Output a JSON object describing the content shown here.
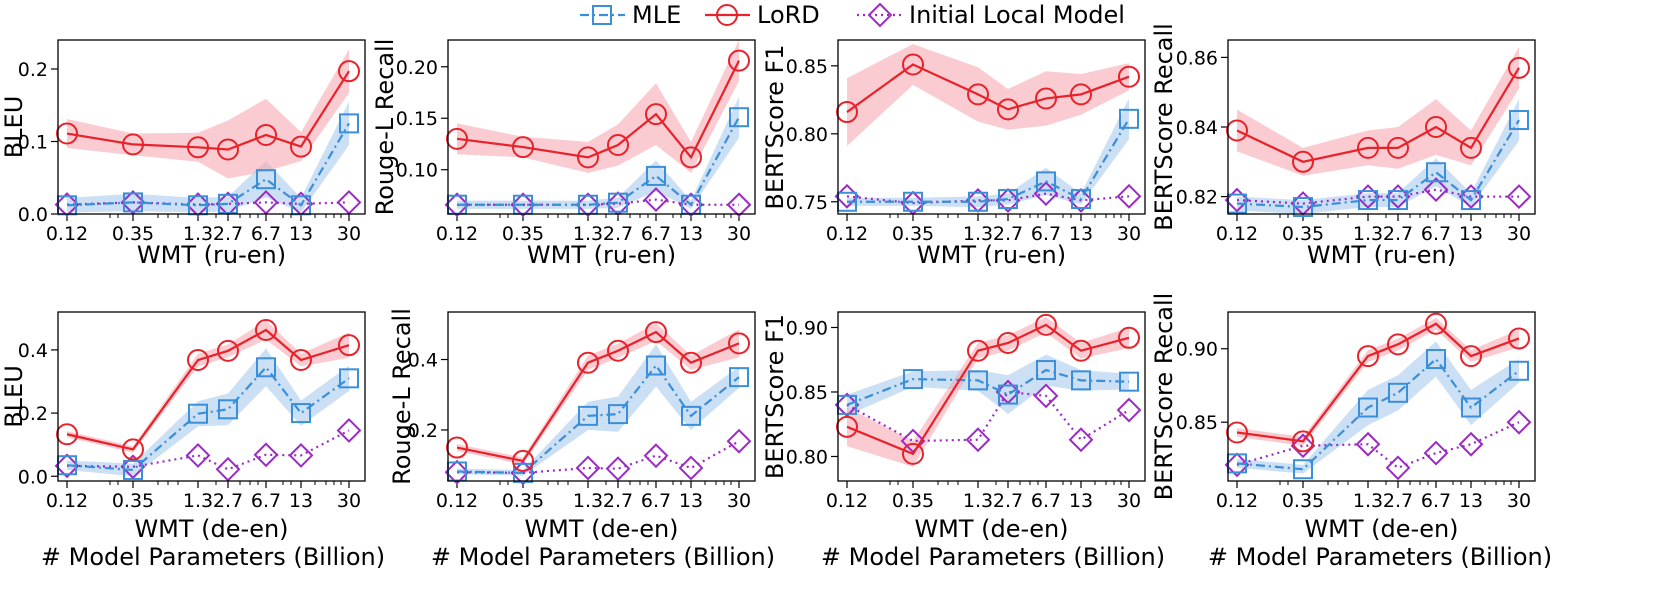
{
  "legend": {
    "entries": [
      {
        "name": "MLE",
        "color": "#3b8fd9",
        "marker": "square",
        "dash": "dashdot"
      },
      {
        "name": "LoRD",
        "color": "#e8222b",
        "marker": "circle",
        "dash": "solid"
      },
      {
        "name": "Initial Local Model",
        "color": "#9b2bc4",
        "marker": "diamond",
        "dash": "dotted"
      }
    ]
  },
  "colors": {
    "mle": "#3b8fd9",
    "lord": "#e8222b",
    "initial": "#9b2bc4",
    "mle_band": "#a9c9ee",
    "lord_band": "#f6a9b0"
  },
  "chart_data": [
    {
      "type": "line",
      "row": 0,
      "col": 0,
      "xlabel": "WMT (ru-en)",
      "ylabel": "BLEU",
      "x": [
        0.12,
        0.35,
        1.3,
        2.7,
        6.7,
        13,
        30
      ],
      "xtick_labels": [
        "0.12",
        "0.35",
        "1.3",
        "2.7",
        "6.7",
        "13",
        "30"
      ],
      "ylim": [
        0.0,
        0.24
      ],
      "yticks": [
        0.0,
        0.1,
        0.2
      ],
      "ytick_labels": [
        "0.0",
        "0.1",
        "0.2"
      ],
      "series": [
        {
          "name": "MLE",
          "values": [
            0.012,
            0.016,
            0.012,
            0.014,
            0.048,
            0.012,
            0.125
          ],
          "band": [
            0.01,
            0.012,
            0.01,
            0.01,
            0.025,
            0.01,
            0.03
          ]
        },
        {
          "name": "LoRD",
          "values": [
            0.111,
            0.096,
            0.092,
            0.089,
            0.109,
            0.093,
            0.197
          ],
          "band": [
            0.02,
            0.015,
            0.02,
            0.04,
            0.05,
            0.02,
            0.03
          ]
        },
        {
          "name": "Initial Local Model",
          "values": [
            0.013,
            0.016,
            0.013,
            0.014,
            0.016,
            0.014,
            0.016
          ]
        }
      ]
    },
    {
      "type": "line",
      "row": 0,
      "col": 1,
      "xlabel": "WMT (ru-en)",
      "ylabel": "Rouge-L Recall",
      "x": [
        0.12,
        0.35,
        1.3,
        2.7,
        6.7,
        13,
        30
      ],
      "xtick_labels": [
        "0.12",
        "0.35",
        "1.3",
        "2.7",
        "6.7",
        "13",
        "30"
      ],
      "ylim": [
        0.057,
        0.226
      ],
      "yticks": [
        0.1,
        0.15,
        0.2
      ],
      "ytick_labels": [
        "0.10",
        "0.15",
        "0.20"
      ],
      "series": [
        {
          "name": "MLE",
          "values": [
            0.066,
            0.066,
            0.066,
            0.068,
            0.094,
            0.066,
            0.151
          ],
          "band": [
            0.004,
            0.004,
            0.004,
            0.005,
            0.015,
            0.004,
            0.02
          ]
        },
        {
          "name": "LoRD",
          "values": [
            0.13,
            0.122,
            0.112,
            0.124,
            0.154,
            0.112,
            0.206
          ],
          "band": [
            0.015,
            0.01,
            0.015,
            0.02,
            0.03,
            0.015,
            0.02
          ]
        },
        {
          "name": "Initial Local Model",
          "values": [
            0.066,
            0.066,
            0.066,
            0.067,
            0.071,
            0.066,
            0.066
          ]
        }
      ]
    },
    {
      "type": "line",
      "row": 0,
      "col": 2,
      "xlabel": "WMT (ru-en)",
      "ylabel": "BERTScore F1",
      "x": [
        0.12,
        0.35,
        1.3,
        2.7,
        6.7,
        13,
        30
      ],
      "xtick_labels": [
        "0.12",
        "0.35",
        "1.3",
        "2.7",
        "6.7",
        "13",
        "30"
      ],
      "ylim": [
        0.741,
        0.869
      ],
      "yticks": [
        0.75,
        0.8,
        0.85
      ],
      "ytick_labels": [
        "0.75",
        "0.80",
        "0.85"
      ],
      "series": [
        {
          "name": "MLE",
          "values": [
            0.75,
            0.75,
            0.75,
            0.752,
            0.765,
            0.752,
            0.811
          ],
          "band": [
            0.003,
            0.003,
            0.004,
            0.004,
            0.01,
            0.004,
            0.015
          ]
        },
        {
          "name": "LoRD",
          "values": [
            0.816,
            0.851,
            0.829,
            0.818,
            0.826,
            0.829,
            0.842
          ],
          "band": [
            0.025,
            0.015,
            0.02,
            0.015,
            0.02,
            0.015,
            0.01
          ]
        },
        {
          "name": "Initial Local Model",
          "values": [
            0.754,
            0.749,
            0.751,
            0.751,
            0.756,
            0.751,
            0.754
          ]
        }
      ]
    },
    {
      "type": "line",
      "row": 0,
      "col": 3,
      "xlabel": "WMT (ru-en)",
      "ylabel": "BERTScore Recall",
      "x": [
        0.12,
        0.35,
        1.3,
        2.7,
        6.7,
        13,
        30
      ],
      "xtick_labels": [
        "0.12",
        "0.35",
        "1.3",
        "2.7",
        "6.7",
        "13",
        "30"
      ],
      "ylim": [
        0.815,
        0.865
      ],
      "yticks": [
        0.82,
        0.84,
        0.86
      ],
      "ytick_labels": [
        "0.82",
        "0.84",
        "0.86"
      ],
      "series": [
        {
          "name": "MLE",
          "values": [
            0.818,
            0.817,
            0.819,
            0.819,
            0.827,
            0.819,
            0.842
          ],
          "band": [
            0.002,
            0.002,
            0.002,
            0.002,
            0.004,
            0.002,
            0.006
          ]
        },
        {
          "name": "LoRD",
          "values": [
            0.839,
            0.83,
            0.834,
            0.834,
            0.84,
            0.834,
            0.857
          ],
          "band": [
            0.006,
            0.004,
            0.005,
            0.006,
            0.008,
            0.005,
            0.006
          ]
        },
        {
          "name": "Initial Local Model",
          "values": [
            0.819,
            0.818,
            0.82,
            0.82,
            0.822,
            0.82,
            0.82
          ]
        }
      ]
    },
    {
      "type": "line",
      "row": 1,
      "col": 0,
      "xlabel": "WMT (de-en)",
      "ylabel": "BLEU",
      "x": [
        0.12,
        0.35,
        1.3,
        2.7,
        6.7,
        13,
        30
      ],
      "xtick_labels": [
        "0.12",
        "0.35",
        "1.3",
        "2.7",
        "6.7",
        "13",
        "30"
      ],
      "ylim": [
        -0.015,
        0.52
      ],
      "yticks": [
        0.0,
        0.2,
        0.4
      ],
      "ytick_labels": [
        "0.0",
        "0.2",
        "0.4"
      ],
      "series": [
        {
          "name": "MLE",
          "values": [
            0.035,
            0.02,
            0.198,
            0.212,
            0.345,
            0.2,
            0.31
          ],
          "band": [
            0.015,
            0.02,
            0.04,
            0.05,
            0.06,
            0.04,
            0.04
          ]
        },
        {
          "name": "LoRD",
          "values": [
            0.133,
            0.085,
            0.368,
            0.397,
            0.463,
            0.368,
            0.415
          ],
          "band": [
            0.01,
            0.01,
            0.02,
            0.02,
            0.03,
            0.02,
            0.04
          ]
        },
        {
          "name": "Initial Local Model",
          "values": [
            0.033,
            0.03,
            0.066,
            0.022,
            0.068,
            0.066,
            0.145
          ]
        }
      ]
    },
    {
      "type": "line",
      "row": 1,
      "col": 1,
      "xlabel": "WMT (de-en)",
      "ylabel": "Rouge-L Recall",
      "x": [
        0.12,
        0.35,
        1.3,
        2.7,
        6.7,
        13,
        30
      ],
      "xtick_labels": [
        "0.12",
        "0.35",
        "1.3",
        "2.7",
        "6.7",
        "13",
        "30"
      ],
      "ylim": [
        0.055,
        0.535
      ],
      "yticks": [
        0.2,
        0.4
      ],
      "ytick_labels": [
        "0.2",
        "0.4"
      ],
      "series": [
        {
          "name": "MLE",
          "values": [
            0.082,
            0.078,
            0.24,
            0.245,
            0.383,
            0.24,
            0.35
          ],
          "band": [
            0.008,
            0.008,
            0.04,
            0.05,
            0.06,
            0.04,
            0.03
          ]
        },
        {
          "name": "LoRD",
          "values": [
            0.15,
            0.112,
            0.391,
            0.425,
            0.478,
            0.391,
            0.446
          ],
          "band": [
            0.01,
            0.01,
            0.02,
            0.02,
            0.025,
            0.02,
            0.04
          ]
        },
        {
          "name": "Initial Local Model",
          "values": [
            0.08,
            0.078,
            0.092,
            0.09,
            0.127,
            0.092,
            0.168
          ]
        }
      ]
    },
    {
      "type": "line",
      "row": 1,
      "col": 2,
      "xlabel": "WMT (de-en)",
      "ylabel": "BERTScore F1",
      "x": [
        0.12,
        0.35,
        1.3,
        2.7,
        6.7,
        13,
        30
      ],
      "xtick_labels": [
        "0.12",
        "0.35",
        "1.3",
        "2.7",
        "6.7",
        "13",
        "30"
      ],
      "ylim": [
        0.781,
        0.912
      ],
      "yticks": [
        0.8,
        0.85,
        0.9
      ],
      "ytick_labels": [
        "0.80",
        "0.85",
        "0.90"
      ],
      "series": [
        {
          "name": "MLE",
          "values": [
            0.84,
            0.86,
            0.859,
            0.848,
            0.867,
            0.859,
            0.858
          ],
          "band": [
            0.008,
            0.006,
            0.008,
            0.015,
            0.012,
            0.008,
            0.006
          ]
        },
        {
          "name": "LoRD",
          "values": [
            0.823,
            0.802,
            0.882,
            0.888,
            0.902,
            0.882,
            0.892
          ],
          "band": [
            0.015,
            0.01,
            0.006,
            0.006,
            0.006,
            0.006,
            0.008
          ]
        },
        {
          "name": "Initial Local Model",
          "values": [
            0.84,
            0.812,
            0.813,
            0.85,
            0.847,
            0.813,
            0.836
          ]
        }
      ]
    },
    {
      "type": "line",
      "row": 1,
      "col": 3,
      "xlabel": "WMT (de-en)",
      "ylabel": "BERTScore Recall",
      "x": [
        0.12,
        0.35,
        1.3,
        2.7,
        6.7,
        13,
        30
      ],
      "xtick_labels": [
        "0.12",
        "0.35",
        "1.3",
        "2.7",
        "6.7",
        "13",
        "30"
      ],
      "ylim": [
        0.81,
        0.925
      ],
      "yticks": [
        0.85,
        0.9
      ],
      "ytick_labels": [
        "0.85",
        "0.90"
      ],
      "series": [
        {
          "name": "MLE",
          "values": [
            0.822,
            0.818,
            0.86,
            0.87,
            0.893,
            0.86,
            0.885
          ],
          "band": [
            0.003,
            0.003,
            0.012,
            0.012,
            0.012,
            0.012,
            0.008
          ]
        },
        {
          "name": "LoRD",
          "values": [
            0.843,
            0.837,
            0.895,
            0.903,
            0.917,
            0.895,
            0.907
          ],
          "band": [
            0.003,
            0.003,
            0.004,
            0.004,
            0.004,
            0.004,
            0.006
          ]
        },
        {
          "name": "Initial Local Model",
          "values": [
            0.821,
            0.834,
            0.835,
            0.819,
            0.829,
            0.835,
            0.85
          ]
        }
      ]
    }
  ],
  "shared_xlabel": "# Model Parameters (Billion)"
}
